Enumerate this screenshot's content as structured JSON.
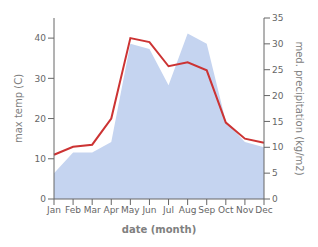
{
  "chart_data": {
    "type": "line",
    "categories": [
      "Jan",
      "Feb",
      "Mar",
      "Apr",
      "May",
      "Jun",
      "Jul",
      "Aug",
      "Sep",
      "Oct",
      "Nov",
      "Dec"
    ],
    "series": [
      {
        "type": "area",
        "color": "#c5d4f0",
        "axis": "y2",
        "values": [
          5,
          9,
          9,
          11,
          30,
          29,
          22,
          32,
          30,
          15,
          11,
          10
        ]
      },
      {
        "type": "line",
        "color": "#cc3333",
        "values": [
          11,
          13,
          13.5,
          20,
          40,
          39,
          33,
          34,
          32,
          19,
          15,
          14
        ]
      }
    ],
    "xlabel": "date (month)",
    "ylabel": "max temp (C)",
    "y2label": "med. precipitation (kg/m2)",
    "ylim": [
      0,
      45
    ],
    "yticks": [
      0,
      10,
      20,
      30,
      40
    ],
    "y2lim": [
      0,
      35
    ],
    "y2ticks": [
      0,
      5,
      10,
      15,
      20,
      25,
      30,
      35
    ],
    "grid": false
  }
}
